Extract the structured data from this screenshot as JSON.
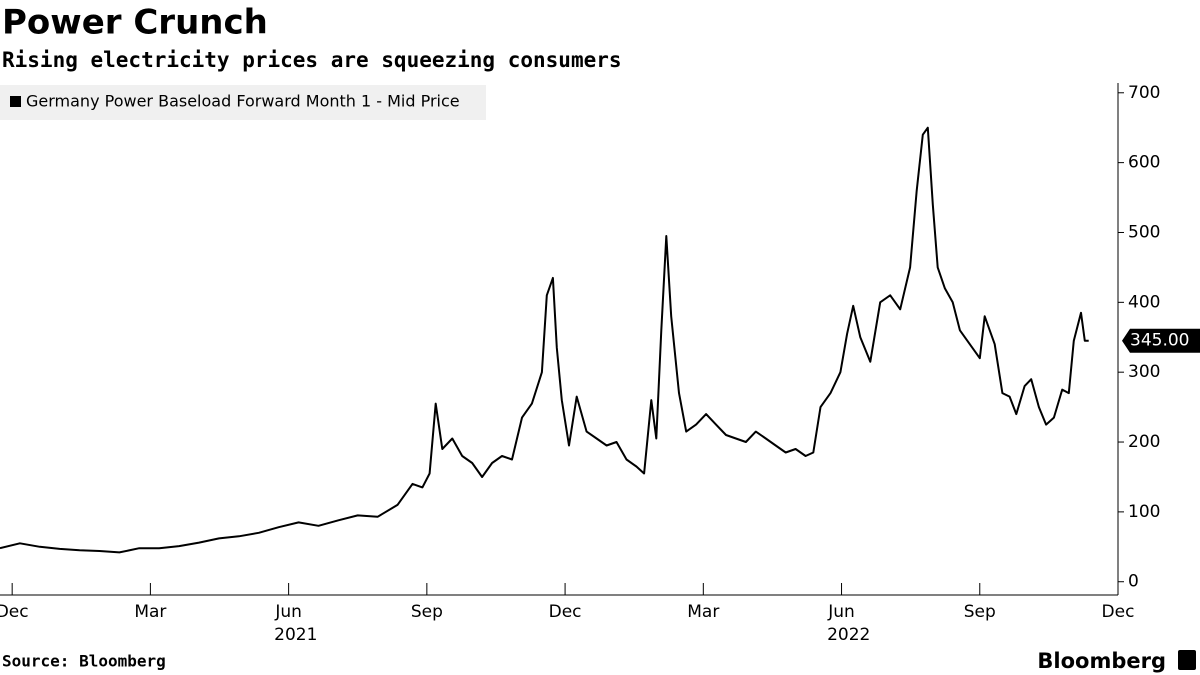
{
  "chart_data": {
    "type": "line",
    "title": "Power Crunch",
    "subtitle": "Rising electricity prices are squeezing consumers",
    "source": "Source: Bloomberg",
    "brand": "Bloomberg",
    "x": [
      2020.895,
      2020.931,
      2020.967,
      2021.003,
      2021.039,
      2021.075,
      2021.111,
      2021.147,
      2021.183,
      2021.219,
      2021.255,
      2021.291,
      2021.327,
      2021.363,
      2021.399,
      2021.435,
      2021.471,
      2021.507,
      2021.542,
      2021.578,
      2021.614,
      2021.641,
      2021.659,
      2021.672,
      2021.683,
      2021.695,
      2021.713,
      2021.731,
      2021.749,
      2021.767,
      2021.785,
      2021.803,
      2021.821,
      2021.839,
      2021.857,
      2021.875,
      2021.884,
      2021.895,
      2021.902,
      2021.911,
      2021.924,
      2021.938,
      2021.956,
      2021.974,
      2021.992,
      2022.01,
      2022.028,
      2022.046,
      2022.06,
      2022.073,
      2022.082,
      2022.091,
      2022.1,
      2022.109,
      2022.123,
      2022.136,
      2022.154,
      2022.172,
      2022.19,
      2022.208,
      2022.226,
      2022.244,
      2022.262,
      2022.28,
      2022.298,
      2022.316,
      2022.334,
      2022.352,
      2022.366,
      2022.379,
      2022.397,
      2022.415,
      2022.427,
      2022.438,
      2022.451,
      2022.469,
      2022.487,
      2022.505,
      2022.523,
      2022.541,
      2022.553,
      2022.564,
      2022.573,
      2022.582,
      2022.591,
      2022.604,
      2022.618,
      2022.631,
      2022.649,
      2022.667,
      2022.676,
      2022.694,
      2022.708,
      2022.721,
      2022.733,
      2022.748,
      2022.76,
      2022.774,
      2022.787,
      2022.801,
      2022.816,
      2022.828,
      2022.837,
      2022.85,
      2022.857,
      2022.864
    ],
    "series": [
      {
        "name": "Germany Power Baseload Forward Month 1 - Mid Price",
        "color": "#000000",
        "values": [
          48,
          55,
          50,
          47,
          45,
          44,
          42,
          48,
          48,
          51,
          56,
          62,
          65,
          70,
          78,
          85,
          80,
          88,
          95,
          93,
          110,
          140,
          135,
          155,
          255,
          190,
          205,
          180,
          170,
          150,
          170,
          180,
          175,
          235,
          255,
          300,
          410,
          435,
          335,
          260,
          195,
          265,
          215,
          205,
          195,
          200,
          175,
          165,
          155,
          260,
          205,
          360,
          495,
          380,
          270,
          215,
          225,
          240,
          225,
          210,
          205,
          200,
          215,
          205,
          195,
          185,
          190,
          180,
          185,
          250,
          270,
          300,
          355,
          395,
          350,
          315,
          400,
          410,
          390,
          450,
          560,
          640,
          650,
          540,
          450,
          420,
          400,
          360,
          340,
          320,
          380,
          340,
          270,
          265,
          240,
          280,
          290,
          250,
          225,
          235,
          275,
          270,
          345,
          385,
          345,
          345
        ]
      }
    ],
    "last_label": {
      "value": 345,
      "label": "345.00"
    },
    "xlim": [
      2020.895,
      2022.917
    ],
    "xticks": [
      {
        "value": 2020.917,
        "label": "Dec"
      },
      {
        "value": 2021.167,
        "label": "Mar"
      },
      {
        "value": 2021.417,
        "label": "Jun"
      },
      {
        "value": 2021.667,
        "label": "Sep"
      },
      {
        "value": 2021.917,
        "label": "Dec"
      },
      {
        "value": 2022.167,
        "label": "Mar"
      },
      {
        "value": 2022.417,
        "label": "Jun"
      },
      {
        "value": 2022.667,
        "label": "Sep"
      },
      {
        "value": 2022.917,
        "label": "Dec"
      }
    ],
    "year_labels": [
      {
        "value": 2021.43,
        "label": "2021"
      },
      {
        "value": 2022.43,
        "label": "2022"
      }
    ],
    "ylim": [
      -19,
      714
    ],
    "yticks": [
      0,
      100,
      200,
      300,
      400,
      500,
      600,
      700
    ]
  }
}
